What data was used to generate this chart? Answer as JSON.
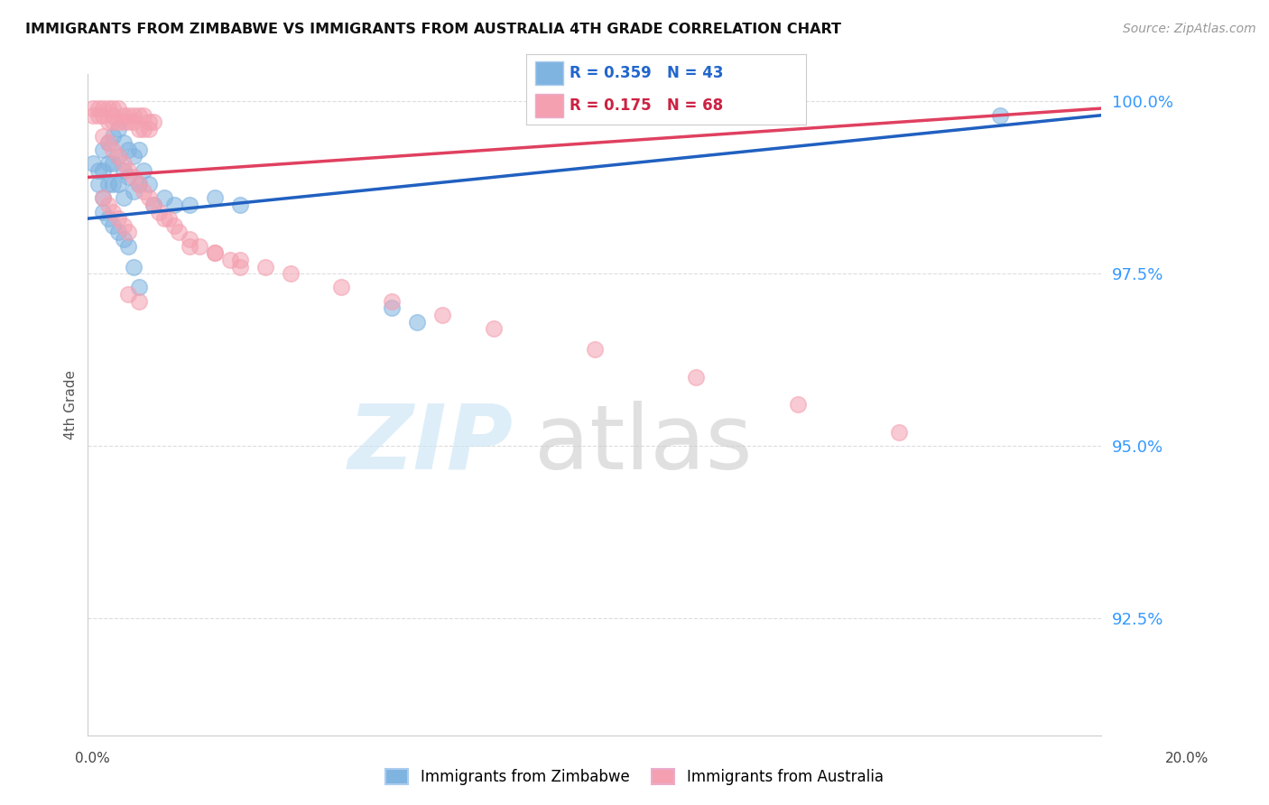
{
  "title": "IMMIGRANTS FROM ZIMBABWE VS IMMIGRANTS FROM AUSTRALIA 4TH GRADE CORRELATION CHART",
  "source": "Source: ZipAtlas.com",
  "ylabel": "4th Grade",
  "yaxis_labels": [
    "100.0%",
    "97.5%",
    "95.0%",
    "92.5%"
  ],
  "yaxis_values": [
    1.0,
    0.975,
    0.95,
    0.925
  ],
  "xmin": 0.0,
  "xmax": 0.2,
  "ymin": 0.908,
  "ymax": 1.004,
  "legend_label_blue": "Immigrants from Zimbabwe",
  "legend_label_pink": "Immigrants from Australia",
  "blue_color": "#7fb3e0",
  "pink_color": "#f4a0b0",
  "blue_line_color": "#2060c0",
  "pink_line_color": "#e04060",
  "bg_color": "#ffffff",
  "grid_color": "#dddddd",
  "zimbabwe_x": [
    0.001,
    0.002,
    0.002,
    0.003,
    0.003,
    0.003,
    0.004,
    0.004,
    0.004,
    0.005,
    0.005,
    0.005,
    0.006,
    0.006,
    0.006,
    0.007,
    0.007,
    0.007,
    0.008,
    0.008,
    0.009,
    0.009,
    0.01,
    0.01,
    0.011,
    0.012,
    0.013,
    0.015,
    0.017,
    0.02,
    0.025,
    0.03,
    0.003,
    0.004,
    0.005,
    0.006,
    0.007,
    0.008,
    0.009,
    0.01,
    0.06,
    0.065,
    0.18
  ],
  "zimbabwe_y": [
    0.991,
    0.99,
    0.988,
    0.993,
    0.99,
    0.986,
    0.994,
    0.991,
    0.988,
    0.995,
    0.991,
    0.988,
    0.996,
    0.992,
    0.988,
    0.994,
    0.99,
    0.986,
    0.993,
    0.989,
    0.992,
    0.987,
    0.993,
    0.988,
    0.99,
    0.988,
    0.985,
    0.986,
    0.985,
    0.985,
    0.986,
    0.985,
    0.984,
    0.983,
    0.982,
    0.981,
    0.98,
    0.979,
    0.976,
    0.973,
    0.97,
    0.968,
    0.998
  ],
  "australia_x": [
    0.001,
    0.001,
    0.002,
    0.002,
    0.003,
    0.003,
    0.004,
    0.004,
    0.005,
    0.005,
    0.005,
    0.006,
    0.006,
    0.007,
    0.007,
    0.008,
    0.008,
    0.009,
    0.009,
    0.01,
    0.01,
    0.011,
    0.011,
    0.012,
    0.012,
    0.013,
    0.003,
    0.004,
    0.005,
    0.006,
    0.007,
    0.008,
    0.009,
    0.01,
    0.011,
    0.012,
    0.013,
    0.014,
    0.015,
    0.016,
    0.017,
    0.018,
    0.02,
    0.022,
    0.025,
    0.028,
    0.03,
    0.003,
    0.004,
    0.005,
    0.006,
    0.007,
    0.008,
    0.02,
    0.025,
    0.03,
    0.035,
    0.04,
    0.05,
    0.06,
    0.07,
    0.08,
    0.1,
    0.12,
    0.14,
    0.16,
    0.008,
    0.01
  ],
  "australia_y": [
    0.999,
    0.998,
    0.999,
    0.998,
    0.999,
    0.998,
    0.999,
    0.997,
    0.999,
    0.998,
    0.997,
    0.999,
    0.997,
    0.998,
    0.997,
    0.998,
    0.997,
    0.998,
    0.997,
    0.998,
    0.996,
    0.998,
    0.996,
    0.997,
    0.996,
    0.997,
    0.995,
    0.994,
    0.993,
    0.992,
    0.991,
    0.99,
    0.989,
    0.988,
    0.987,
    0.986,
    0.985,
    0.984,
    0.983,
    0.983,
    0.982,
    0.981,
    0.98,
    0.979,
    0.978,
    0.977,
    0.976,
    0.986,
    0.985,
    0.984,
    0.983,
    0.982,
    0.981,
    0.979,
    0.978,
    0.977,
    0.976,
    0.975,
    0.973,
    0.971,
    0.969,
    0.967,
    0.964,
    0.96,
    0.956,
    0.952,
    0.972,
    0.971
  ],
  "zim_trend_x": [
    0.0,
    0.2
  ],
  "zim_trend_y": [
    0.983,
    0.998
  ],
  "aus_trend_x": [
    0.0,
    0.2
  ],
  "aus_trend_y": [
    0.989,
    0.999
  ]
}
